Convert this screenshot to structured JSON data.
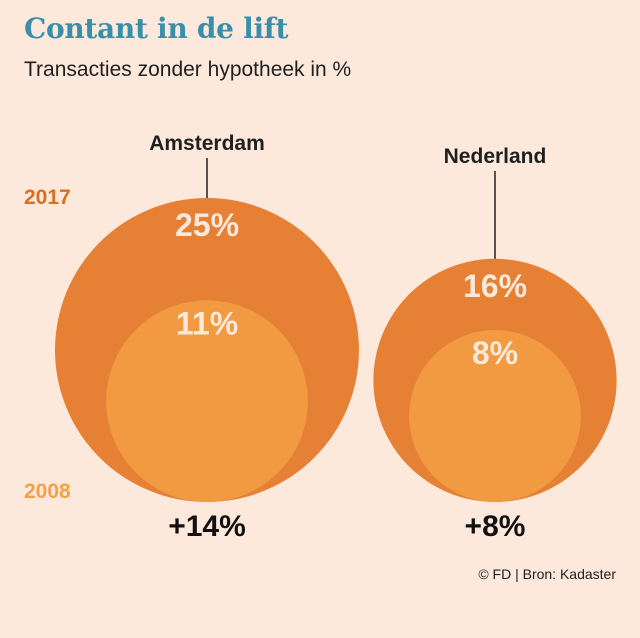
{
  "title": "Contant in de lift",
  "subtitle": "Transacties zonder hypotheek in %",
  "source": "© FD | Bron: Kadaster",
  "legend": {
    "year_recent": "2017",
    "year_old": "2008"
  },
  "colors": {
    "background": "#fde9dc",
    "recent": "#e58034",
    "old": "#f29a42",
    "title": "#3a8fa8",
    "year_recent_label": "#d96f1f",
    "year_old_label": "#f2a14b"
  },
  "chart_data": {
    "type": "bubble",
    "title": "Contant in de lift",
    "subtitle": "Transacties zonder hypotheek in %",
    "series_labels": [
      "2017",
      "2008"
    ],
    "groups": [
      {
        "name": "Amsterdam",
        "value_2017": 25,
        "value_2008": 11,
        "label_2017": "25%",
        "label_2008": "11%",
        "change": "+14%"
      },
      {
        "name": "Nederland",
        "value_2017": 16,
        "value_2008": 8,
        "label_2017": "16%",
        "label_2008": "8%",
        "change": "+8%"
      }
    ]
  }
}
